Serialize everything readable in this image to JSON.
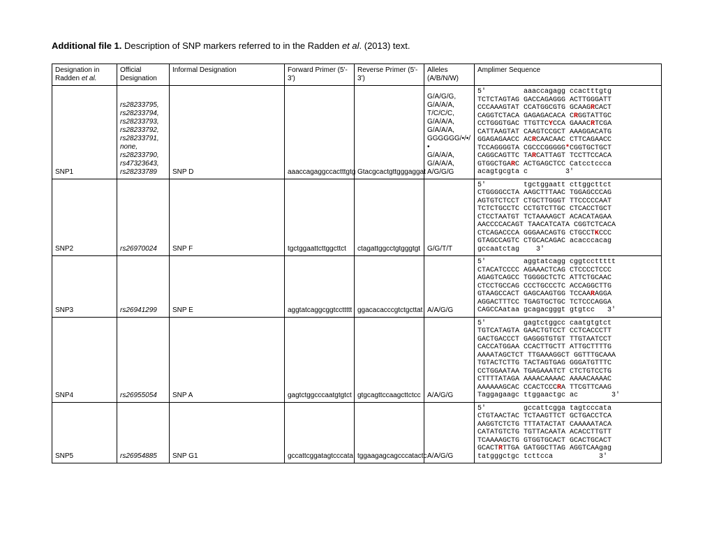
{
  "title_bold": "Additional file 1.",
  "title_rest": "  Description of SNP markers referred to in the Radden ",
  "title_ital": "et al",
  "title_end": ". (2013) text.",
  "headers": {
    "c0a": "Designation in",
    "c0b": "Radden ",
    "c0c": "et al.",
    "c1a": "Official",
    "c1b": "Designation",
    "c2": "Informal Designation",
    "c3a": "Forward Primer (5'-",
    "c3b": "3')",
    "c4a": "Reverse Primer (5'-",
    "c4b": "3')",
    "c5a": "Alleles",
    "c5b": "(A/B/N/W)",
    "c6": "Amplimer Sequence"
  },
  "rows": [
    {
      "c0": "SNP1",
      "c1_lines": [
        "rs28233795,",
        "rs28233794,",
        "rs28233793,",
        "rs28233792,",
        "rs28233791,",
        "none,",
        "rs28233790,",
        "rs47323643,",
        "rs28233789"
      ],
      "c2": "SNP D",
      "c3": "aaaccagaggccactttgtg",
      "c4": "Gtacgcactgttgggaggat",
      "c5_lines": [
        "G/A/G/G,",
        "G/A/A/A,",
        "T/C/C/C,",
        "G/A/A/A,",
        "G/A/A/A,",
        "GGGGGG/•/•/•",
        "G/A/A/A,",
        "G/A/A/A,",
        "A/G/G/G"
      ],
      "seq": [
        [
          "5'         aaaccagagg ccactttgtg",
          ""
        ],
        [
          "TCTCTAGTAG GACCAGAGGG ACTTGGGATT",
          ""
        ],
        [
          "CCCAAAGTAT CCATGGCGTG GCAAG",
          "R",
          "CACT"
        ],
        [
          "CAGGTCTACA GAGAGACACA C",
          "R",
          "GGTATTGC"
        ],
        [
          "CCTGGGTGAC TTGTTC",
          "Y",
          "CCA GAAAC",
          "R",
          "TCGA"
        ],
        [
          "CATTAAGTAT CAAGTCCGCT AAAGGACATG",
          ""
        ],
        [
          "GGAGAGAACC AC",
          "R",
          "CAACAAC CTTCAGAACC"
        ],
        [
          "TCCAGGGGTA CGCCCGGGGG",
          "*",
          "CGGTGCTGCT"
        ],
        [
          "CAGGCAGTTC TA",
          "R",
          "CATTAGT TCCTTCCACA"
        ],
        [
          "GTGGCTGA",
          "R",
          "C ACTGAGCTCC Catcctccca"
        ],
        [
          "acagtgcgta c         3'",
          ""
        ]
      ]
    },
    {
      "c0": "SNP2",
      "c1_lines": [
        "rs26970024"
      ],
      "c2": "SNP F",
      "c3": "tgctggaattcttggcttct",
      "c4": "ctagattggcctgtgggtgt",
      "c5_lines": [
        "G/G/T/T"
      ],
      "seq": [
        [
          "5'         tgctggaatt cttggcttct",
          ""
        ],
        [
          "CTGGGGCCTA AAGCTTTAAC TGGAGCCCAG",
          ""
        ],
        [
          "AGTGTCTCCT CTGCTTGGGT TTCCCCCAAT",
          ""
        ],
        [
          "TCTCTGCCTC CCTGTCTTGC CTCACCTGCT",
          ""
        ],
        [
          "CTCCTAATGT TCTAAAAGCT ACACATAGAA",
          ""
        ],
        [
          "AACCCCACAGT TAACATCATA CGGTCTCACA",
          ""
        ],
        [
          "CTCAGACCCA GGGAACAGTG CTGCCT",
          "K",
          "CCC"
        ],
        [
          "GTAGCCAGTC CTGCACAGAC acacccacag",
          ""
        ],
        [
          "gccaatctag    3'",
          ""
        ]
      ]
    },
    {
      "c0": "SNP3",
      "c1_lines": [
        "rs26941299"
      ],
      "c2": "SNP E",
      "c3": "aggtatcaggcggtccttttt",
      "c4": "ggacacacccgtctgcttat",
      "c5_lines": [
        "A/A/G/G"
      ],
      "seq": [
        [
          "5'         aggtatcagg cggtccttttt",
          ""
        ],
        [
          "CTACATCCCC AGAAACTCAG CTCCCCTCCC",
          ""
        ],
        [
          "AGAGTCAGCC TGGGGCTCTC ATTCTGCAAC",
          ""
        ],
        [
          "CTCCTGCCAG CCCTGCCCTC ACCAGGCTTG",
          ""
        ],
        [
          "GTAAGCCACT GAGCAAGTGG TCCAA",
          "R",
          "AGGA"
        ],
        [
          "AGGACTTTCC TGAGTGCTGC TCTCCCAGGA",
          ""
        ],
        [
          "CAGCCAataa gcagacgggt gtgtcc   3'",
          ""
        ]
      ]
    },
    {
      "c0": "SNP4",
      "c1_lines": [
        "rs26955054"
      ],
      "c2": "SNP A",
      "c3": "gagtctggcccaatgtgtct",
      "c4": "gtgcagttccaagcttctcc",
      "c5_lines": [
        "A/A/G/G"
      ],
      "seq": [
        [
          "5'         gagtctggcc caatgtgtct",
          ""
        ],
        [
          "TGTCATAGTA GAACTGTCCT CCTCACCCTT",
          ""
        ],
        [
          "GACTGACCCT GAGGGTGTGT TTGTAATCCT",
          ""
        ],
        [
          "CACCATGGAA CCACTTGCTT ATTGCTTTTG",
          ""
        ],
        [
          "AAAATAGCTCT TTGAAAGGCT GGTTTGCAAA",
          ""
        ],
        [
          "TGTACTCTTG TACTAGTGAG GGGATGTTTC",
          ""
        ],
        [
          "CCTGGAATAA TGAGAAATCT CTCTGTCCTG",
          ""
        ],
        [
          "CTTTTATAGA AAAACAAAAC AAAACAAAAC",
          ""
        ],
        [
          "AAAAAAGCAC CCACTCCC",
          "R",
          "A TTCGTTCAAG"
        ],
        [
          "Taggagaagc ttggaactgc ac        3'",
          ""
        ]
      ]
    },
    {
      "c0": "SNP5",
      "c1_lines": [
        "rs26954885"
      ],
      "c2": "SNP G1",
      "c3": "gccattcggatagtcccata",
      "c4": "tggaagagcagcccatactc",
      "c5_lines": [
        "A/A/G/G"
      ],
      "seq": [
        [
          "5'         gccattcgga tagtcccata",
          ""
        ],
        [
          "CTGTAACTAC TCTAAGTTCT GCTGACCTCA",
          ""
        ],
        [
          "AAGGTCTCTG TTTATACTAT CAAAAATACA",
          ""
        ],
        [
          "CATATGTCTG TGTTACAATA ACACCTTGTT",
          ""
        ],
        [
          "TCAAAAGCTG GTGGTGCACT GCACTGCACT",
          ""
        ],
        [
          "GCACT",
          "R",
          "TTGA GATGGCTTAG AGGTCAAgag"
        ],
        [
          "tatgggctgc tcttcca           3'",
          ""
        ]
      ]
    }
  ]
}
